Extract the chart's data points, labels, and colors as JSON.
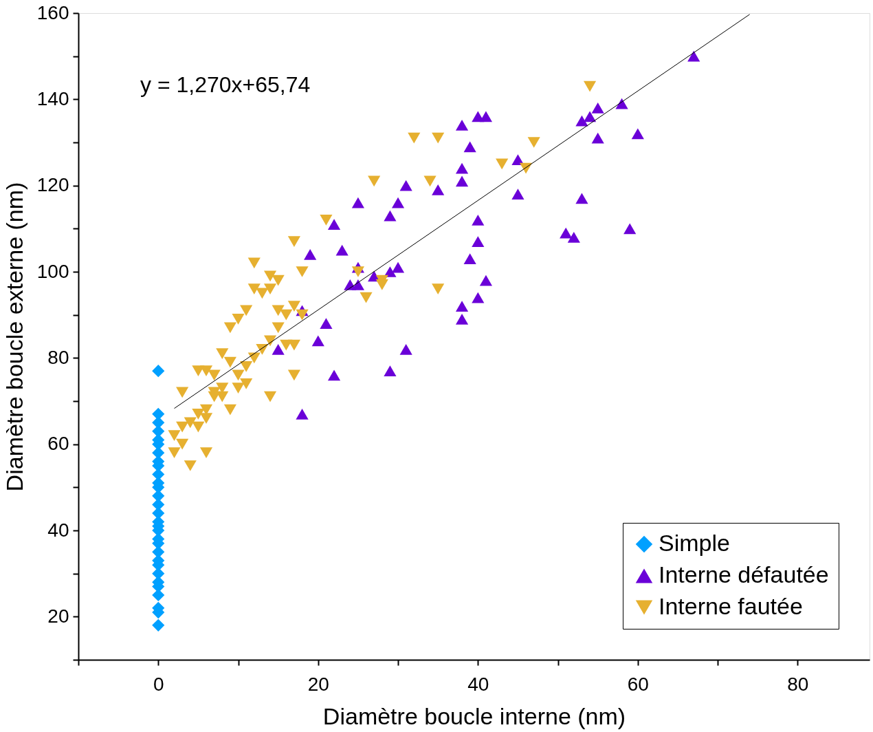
{
  "chart_data": {
    "type": "scatter",
    "xlabel": "Diamètre boucle interne (nm)",
    "ylabel": "Diamètre boucle externe (nm)",
    "annotations": [
      "y = 1,270x+65,74"
    ],
    "xlim": [
      -10,
      89
    ],
    "ylim": [
      10,
      160
    ],
    "xticks": [
      {
        "value": -10,
        "label": null
      },
      0,
      {
        "value": 10,
        "label": null
      },
      20,
      {
        "value": 30,
        "label": null
      },
      40,
      {
        "value": 50,
        "label": null
      },
      60,
      {
        "value": 70,
        "label": null
      },
      80
    ],
    "yticks": [
      {
        "value": 10,
        "label": null
      },
      20,
      {
        "value": 30,
        "label": null
      },
      40,
      {
        "value": 50,
        "label": null
      },
      60,
      {
        "value": 70,
        "label": null
      },
      80,
      {
        "value": 90,
        "label": null
      },
      100,
      {
        "value": 110,
        "label": null
      },
      120,
      {
        "value": 130,
        "label": null
      },
      140,
      {
        "value": 150,
        "label": null
      },
      160
    ],
    "grid": false,
    "legend": "bottom right",
    "series": [
      {
        "name": "Simple",
        "color": "#00a0ff",
        "marker": "diamond",
        "x": [
          0,
          0,
          0,
          0,
          0,
          0,
          0,
          0,
          0,
          0,
          0,
          0,
          0,
          0,
          0,
          0,
          0,
          0,
          0,
          0,
          0,
          0,
          0,
          0,
          0,
          0,
          0,
          0,
          0,
          0
        ],
        "values": [
          18,
          21,
          22,
          25,
          27,
          28,
          30,
          32,
          33,
          35,
          37,
          38,
          40,
          41,
          42,
          44,
          46,
          48,
          50,
          51,
          53,
          55,
          56,
          58,
          60,
          61,
          63,
          65,
          67,
          77
        ]
      },
      {
        "name": "Interne défautée",
        "color": "#6a00d8",
        "marker": "triangle",
        "x": [
          67,
          58,
          60,
          55,
          54,
          53,
          55,
          53,
          59,
          51,
          52,
          45,
          45,
          40,
          41,
          38,
          39,
          38,
          38,
          40,
          40,
          39,
          41,
          40,
          38,
          38,
          31,
          29,
          22,
          18,
          20,
          21,
          23,
          25,
          22,
          19,
          31,
          30,
          29,
          35,
          30,
          29,
          27,
          25,
          24,
          25,
          18,
          15
        ],
        "values": [
          150,
          139,
          132,
          138,
          136,
          135,
          131,
          117,
          110,
          109,
          108,
          118,
          126,
          136,
          136,
          134,
          129,
          124,
          121,
          112,
          107,
          103,
          98,
          94,
          92,
          89,
          82,
          77,
          76,
          67,
          84,
          88,
          105,
          116,
          111,
          104,
          120,
          116,
          113,
          119,
          101,
          100,
          99,
          97,
          97,
          101,
          91,
          82
        ]
      },
      {
        "name": "Interne fautée",
        "color": "#e6b030",
        "marker": "triangle-down",
        "x": [
          54,
          47,
          43,
          46,
          32,
          35,
          34,
          27,
          21,
          25,
          28,
          28,
          26,
          35,
          17,
          18,
          12,
          14,
          15,
          17,
          18,
          12,
          14,
          13,
          11,
          10,
          9,
          15,
          16,
          15,
          14,
          16,
          17,
          13,
          12,
          11,
          8,
          9,
          17,
          14,
          11,
          10,
          5,
          6,
          7,
          3,
          7,
          8,
          9,
          6,
          5,
          4,
          3,
          2,
          3,
          2,
          6,
          4,
          5,
          6,
          7,
          8,
          10
        ],
        "values": [
          143,
          130,
          125,
          124,
          131,
          131,
          121,
          121,
          112,
          100,
          98,
          97,
          94,
          96,
          107,
          100,
          102,
          99,
          98,
          92,
          90,
          96,
          96,
          95,
          91,
          89,
          87,
          91,
          90,
          87,
          84,
          83,
          83,
          82,
          80,
          78,
          81,
          79,
          76,
          71,
          74,
          73,
          77,
          77,
          76,
          72,
          72,
          71,
          68,
          68,
          67,
          65,
          64,
          62,
          60,
          58,
          58,
          55,
          64,
          66,
          71,
          73,
          76
        ]
      },
      {
        "type": "line",
        "color": "#000000",
        "x": [
          2,
          74
        ],
        "values": [
          68.3,
          159.7
        ]
      }
    ]
  }
}
